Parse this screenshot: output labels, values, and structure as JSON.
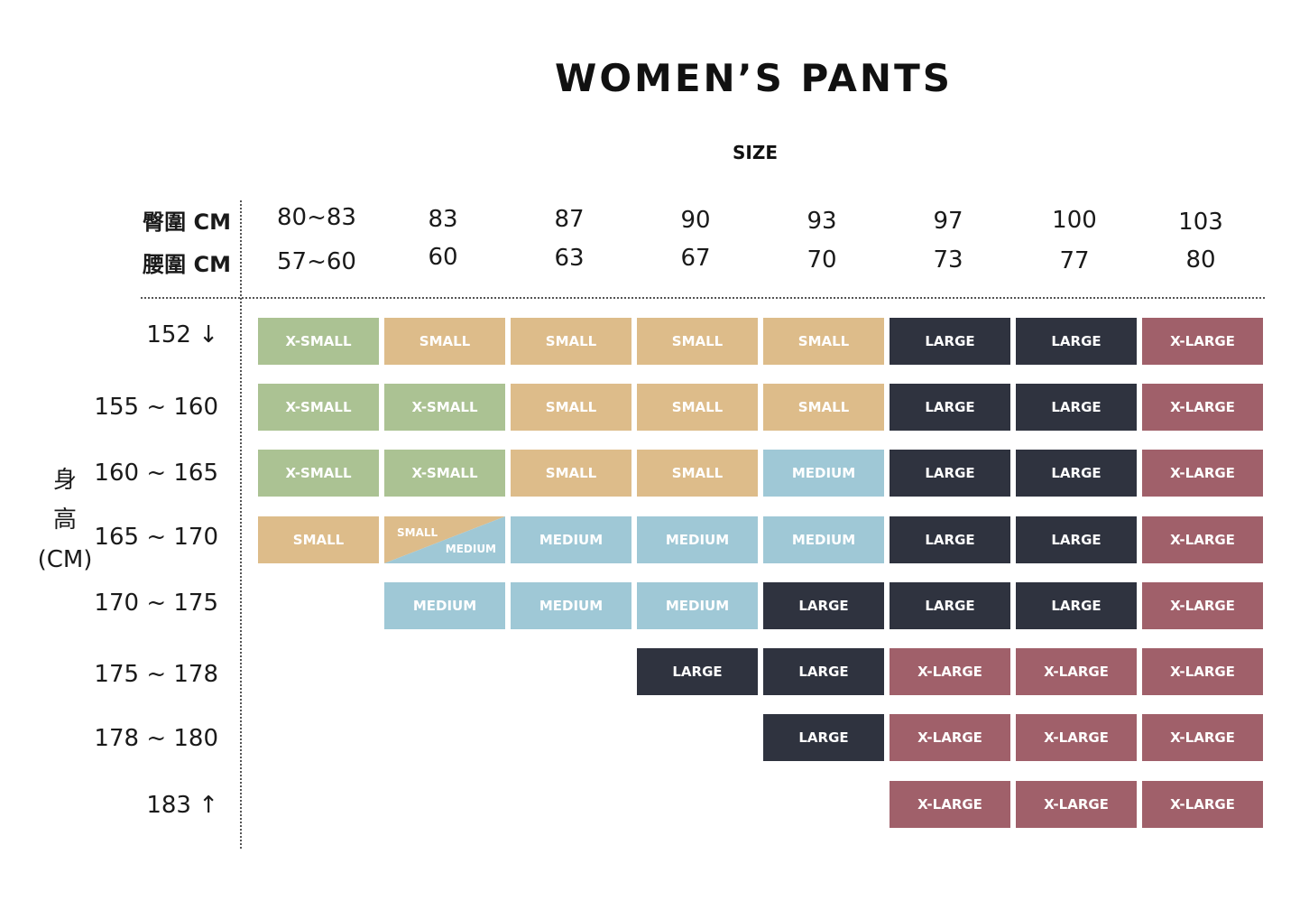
{
  "title": "WOMEN’S PANTS",
  "size_label": "SIZE",
  "header": {
    "hip_label": "臀圍 CM",
    "waist_label": "腰圍 CM",
    "hip_values": [
      "80~83",
      "83",
      "87",
      "90",
      "93",
      "97",
      "100",
      "103"
    ],
    "waist_values": [
      "57~60",
      "60",
      "63",
      "67",
      "70",
      "73",
      "77",
      "80"
    ]
  },
  "height_axis": {
    "line1": "身",
    "line2": "高",
    "line3": "(CM)"
  },
  "row_labels": [
    "152 ↓",
    "155 ~ 160",
    "160 ~ 165",
    "165 ~ 170",
    "170 ~ 175",
    "175 ~ 178",
    "178 ~ 180",
    "183 ↑"
  ],
  "size_colors": {
    "X-SMALL": "#abc293",
    "SMALL": "#ddbc8a",
    "MEDIUM": "#9fc8d6",
    "LARGE": "#2f333f",
    "X-LARGE": "#a0606a"
  },
  "grid": [
    [
      "X-SMALL",
      "SMALL",
      "SMALL",
      "SMALL",
      "SMALL",
      "LARGE",
      "LARGE",
      "X-LARGE"
    ],
    [
      "X-SMALL",
      "X-SMALL",
      "SMALL",
      "SMALL",
      "SMALL",
      "LARGE",
      "LARGE",
      "X-LARGE"
    ],
    [
      "X-SMALL",
      "X-SMALL",
      "SMALL",
      "SMALL",
      "MEDIUM",
      "LARGE",
      "LARGE",
      "X-LARGE"
    ],
    [
      "SMALL",
      "SMALL/MEDIUM",
      "MEDIUM",
      "MEDIUM",
      "MEDIUM",
      "LARGE",
      "LARGE",
      "X-LARGE"
    ],
    [
      "",
      "MEDIUM",
      "MEDIUM",
      "MEDIUM",
      "LARGE",
      "LARGE",
      "LARGE",
      "X-LARGE"
    ],
    [
      "",
      "",
      "",
      "LARGE",
      "LARGE",
      "X-LARGE",
      "X-LARGE",
      "X-LARGE"
    ],
    [
      "",
      "",
      "",
      "",
      "LARGE",
      "X-LARGE",
      "X-LARGE",
      "X-LARGE"
    ],
    [
      "",
      "",
      "",
      "",
      "",
      "X-LARGE",
      "X-LARGE",
      "X-LARGE"
    ]
  ]
}
